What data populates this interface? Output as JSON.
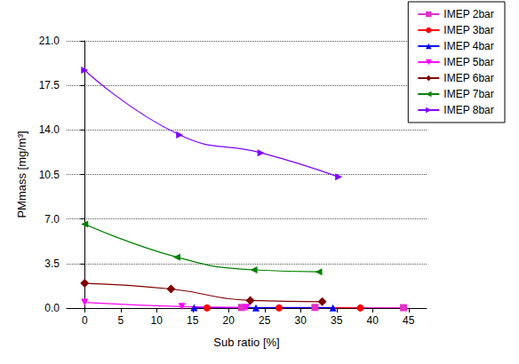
{
  "chart_data": {
    "type": "line",
    "x_label": "Sub ratio [%]",
    "y_label": "PMmass [mg/m³]",
    "xlim": [
      -2.5,
      47.5
    ],
    "xticks": [
      0,
      5,
      10,
      15,
      20,
      25,
      30,
      35,
      40,
      45
    ],
    "ylim": [
      0,
      21
    ],
    "yticks": [
      {
        "value": 0,
        "label": "0.0"
      },
      3.5,
      {
        "value": 7,
        "label": "7.0"
      },
      10.5,
      {
        "value": 14,
        "label": "14.0"
      },
      17.5,
      {
        "value": 21,
        "label": "21.0"
      }
    ],
    "grid": true,
    "legend": "top-right",
    "series": [
      {
        "name": "IMEP 2bar",
        "color": "#e030c8",
        "marker": "square",
        "x": [
          21.8,
          32.0,
          44.3
        ],
        "values": [
          0.05,
          0.05,
          0.03
        ]
      },
      {
        "name": "IMEP 3bar",
        "color": "#ff0000",
        "marker": "circle",
        "x": [
          17.0,
          27.0,
          38.3
        ],
        "values": [
          0.02,
          0.02,
          0.01
        ]
      },
      {
        "name": "IMEP 4bar",
        "color": "#0000ff",
        "marker": "triangle-up",
        "x": [
          15.2,
          23.8,
          34.5
        ],
        "values": [
          0.03,
          0.02,
          0.02
        ]
      },
      {
        "name": "IMEP 5bar",
        "color": "#ff00ff",
        "marker": "triangle-down",
        "x": [
          0,
          13.5,
          22.5
        ],
        "values": [
          0.45,
          0.12,
          0.05
        ]
      },
      {
        "name": "IMEP 6bar",
        "color": "#800000",
        "marker": "diamond",
        "x": [
          0,
          12.0,
          23.0,
          33.0
        ],
        "values": [
          1.95,
          1.5,
          0.6,
          0.5
        ]
      },
      {
        "name": "IMEP 7bar",
        "color": "#008000",
        "marker": "triangle-left",
        "x": [
          0,
          12.8,
          23.5,
          32.5
        ],
        "values": [
          6.6,
          4.0,
          3.0,
          2.85
        ]
      },
      {
        "name": "IMEP 8bar",
        "color": "#8000ff",
        "marker": "triangle-right",
        "x": [
          0,
          13.2,
          24.5,
          35.3
        ],
        "values": [
          18.7,
          13.6,
          12.2,
          10.3
        ]
      }
    ]
  }
}
